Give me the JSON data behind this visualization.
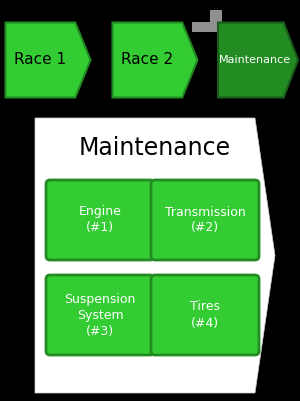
{
  "bg_color": "#000000",
  "green_light": "#33cc33",
  "green_dark": "#228B22",
  "gray_color": "#909090",
  "white_color": "#ffffff",
  "phases": [
    "Race 1",
    "Race 2",
    "Maintenance"
  ],
  "maintenance_title": "Maintenance",
  "items": [
    {
      "label": "Engine\n(#1)",
      "row": 0,
      "col": 0
    },
    {
      "label": "Transmission\n(#2)",
      "row": 0,
      "col": 1
    },
    {
      "label": "Suspension\nSystem\n(#3)",
      "row": 1,
      "col": 0
    },
    {
      "label": "Tires\n(#4)",
      "row": 1,
      "col": 1
    }
  ],
  "item_text_color": "#ffffff"
}
